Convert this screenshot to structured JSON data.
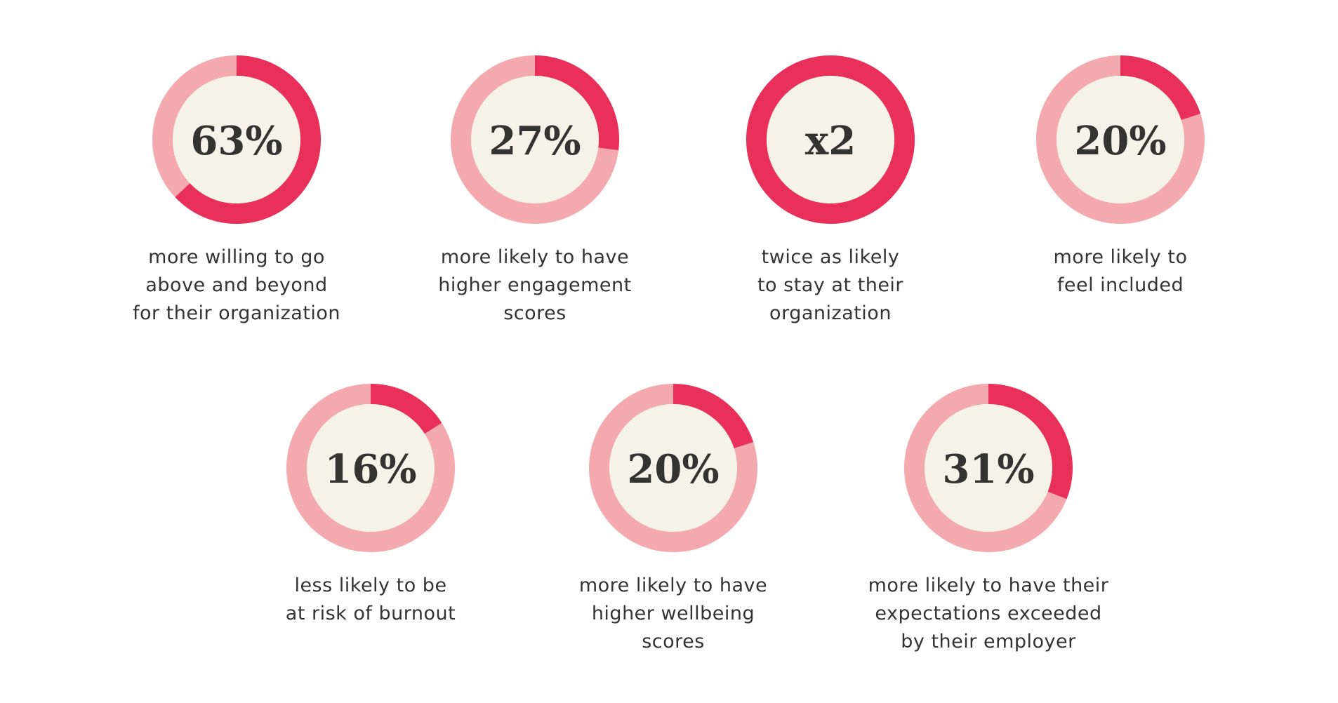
{
  "chart_data": [
    {
      "type": "donut",
      "values": [
        63
      ],
      "value_labels": [
        "63%"
      ],
      "ylim": [
        0,
        100
      ],
      "color": "#e8305a",
      "track_color": "#f4a9ae",
      "center_color": "#f5f2e8",
      "caption": [
        "more willing to go",
        "above and beyond",
        "for their organization"
      ]
    },
    {
      "type": "donut",
      "values": [
        27
      ],
      "value_labels": [
        "27%"
      ],
      "ylim": [
        0,
        100
      ],
      "color": "#e8305a",
      "track_color": "#f4a9ae",
      "center_color": "#f5f2e8",
      "caption": [
        "more likely to have",
        "higher engagement",
        "scores"
      ]
    },
    {
      "type": "donut",
      "values": [
        2
      ],
      "value_labels": [
        "x2"
      ],
      "ylim": [
        0,
        2
      ],
      "color": "#e8305a",
      "track_color": "#f4a9ae",
      "center_color": "#f5f2e8",
      "caption": [
        "twice as likely",
        "to stay at their",
        "organization"
      ]
    },
    {
      "type": "donut",
      "values": [
        20
      ],
      "value_labels": [
        "20%"
      ],
      "ylim": [
        0,
        100
      ],
      "color": "#e8305a",
      "track_color": "#f4a9ae",
      "center_color": "#f5f2e8",
      "caption": [
        "more likely to",
        "feel included"
      ]
    },
    {
      "type": "donut",
      "values": [
        16
      ],
      "value_labels": [
        "16%"
      ],
      "ylim": [
        0,
        100
      ],
      "color": "#e8305a",
      "track_color": "#f4a9ae",
      "center_color": "#f5f2e8",
      "caption": [
        "less likely to be",
        "at risk of burnout"
      ]
    },
    {
      "type": "donut",
      "values": [
        20
      ],
      "value_labels": [
        "20%"
      ],
      "ylim": [
        0,
        100
      ],
      "color": "#e8305a",
      "track_color": "#f4a9ae",
      "center_color": "#f5f2e8",
      "caption": [
        "more likely to have",
        "higher wellbeing",
        "scores"
      ]
    },
    {
      "type": "donut",
      "values": [
        31
      ],
      "value_labels": [
        "31%"
      ],
      "ylim": [
        0,
        100
      ],
      "color": "#e8305a",
      "track_color": "#f4a9ae",
      "center_color": "#f5f2e8",
      "caption": [
        "more likely to have their",
        "expectations exceeded",
        "by their employer"
      ]
    }
  ]
}
